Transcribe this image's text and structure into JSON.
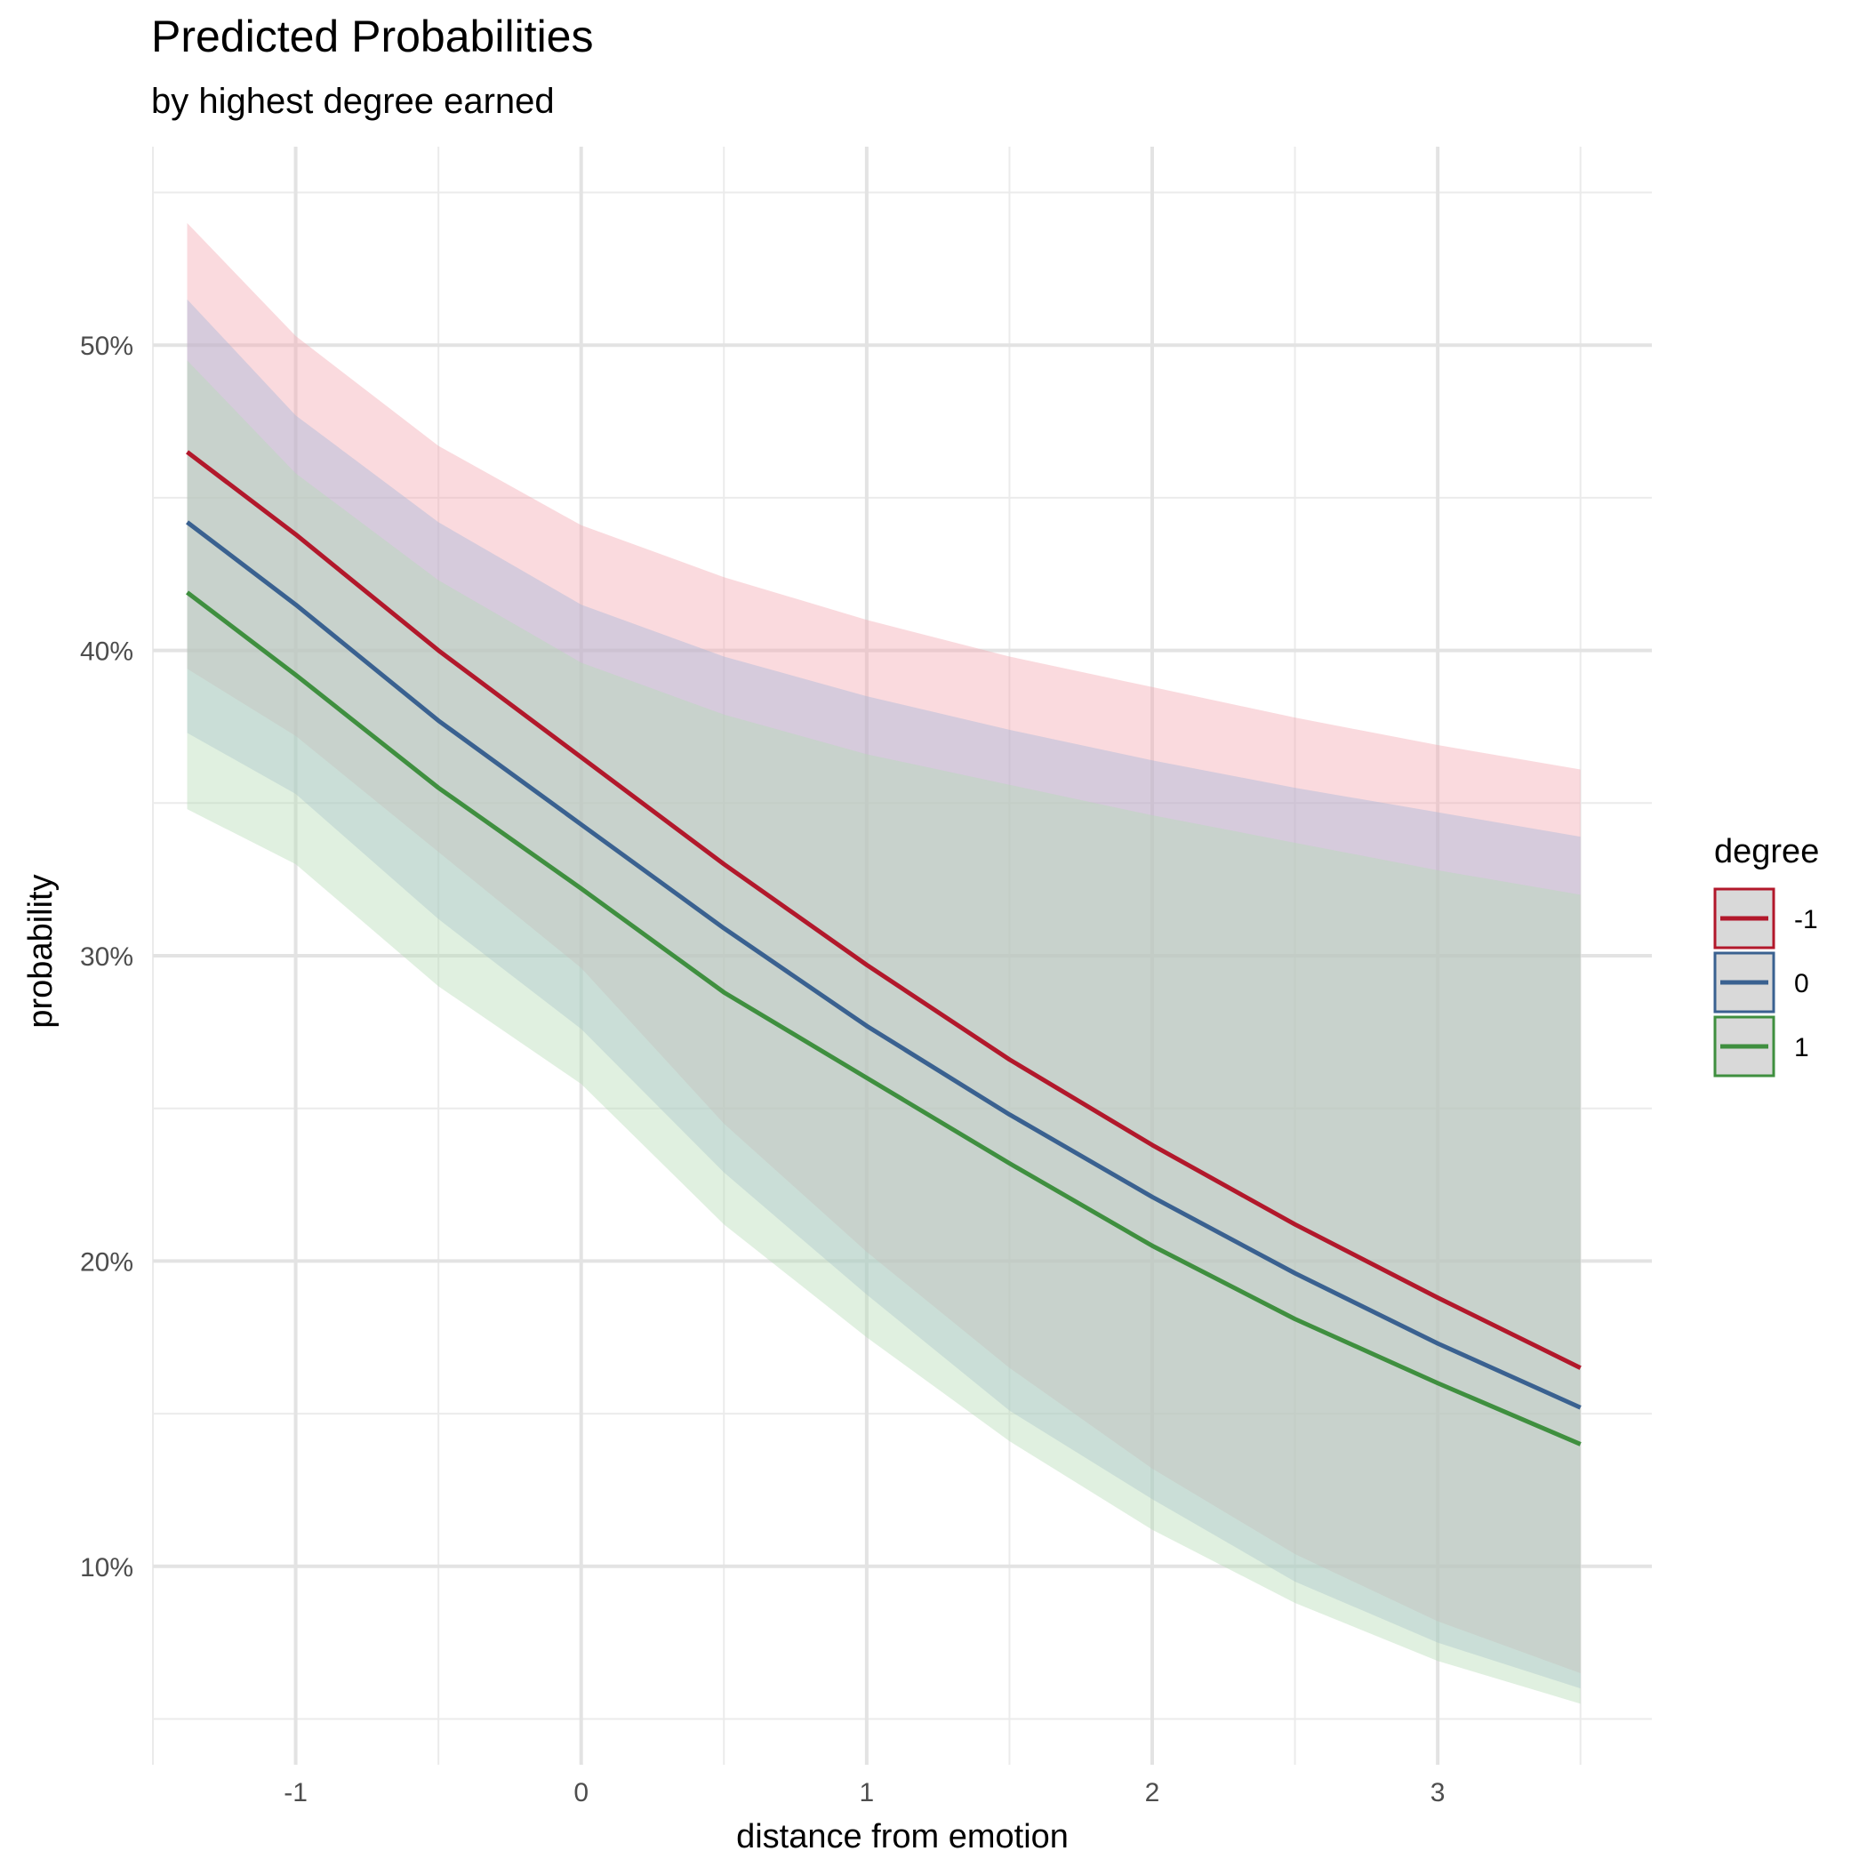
{
  "chart_data": {
    "type": "line",
    "title": "Predicted Probabilities",
    "subtitle": "by highest degree earned",
    "xlabel": "distance from emotion",
    "ylabel": "probability",
    "xlim": [
      -1.5,
      3.75
    ],
    "ylim": [
      0.035,
      0.565
    ],
    "x_ticks": [
      -1,
      0,
      1,
      2,
      3
    ],
    "x_tick_labels": [
      "-1",
      "0",
      "1",
      "2",
      "3"
    ],
    "y_ticks": [
      0.1,
      0.2,
      0.3,
      0.4,
      0.5
    ],
    "y_tick_labels": [
      "10%",
      "20%",
      "30%",
      "40%",
      "50%"
    ],
    "grid": true,
    "legend": {
      "title": "degree",
      "position": "right"
    },
    "x": [
      -1.38,
      -1.0,
      -0.5,
      0.0,
      0.5,
      1.0,
      1.5,
      2.0,
      2.5,
      3.0,
      3.5
    ],
    "series": [
      {
        "name": "-1",
        "color": "#b2182b",
        "fill": "#f4a6b0",
        "values": [
          0.465,
          0.438,
          0.4,
          0.365,
          0.33,
          0.297,
          0.266,
          0.238,
          0.212,
          0.188,
          0.165
        ],
        "upper": [
          0.54,
          0.503,
          0.467,
          0.441,
          0.424,
          0.41,
          0.398,
          0.388,
          0.378,
          0.369,
          0.361
        ],
        "lower": [
          0.394,
          0.372,
          0.334,
          0.296,
          0.245,
          0.203,
          0.165,
          0.132,
          0.104,
          0.082,
          0.065
        ]
      },
      {
        "name": "0",
        "color": "#3a6190",
        "fill": "#a4b8d8",
        "values": [
          0.442,
          0.415,
          0.377,
          0.343,
          0.309,
          0.277,
          0.248,
          0.221,
          0.196,
          0.173,
          0.152
        ],
        "upper": [
          0.515,
          0.477,
          0.442,
          0.415,
          0.398,
          0.385,
          0.374,
          0.364,
          0.355,
          0.347,
          0.339
        ],
        "lower": [
          0.373,
          0.353,
          0.312,
          0.276,
          0.229,
          0.189,
          0.151,
          0.122,
          0.095,
          0.075,
          0.06
        ]
      },
      {
        "name": "1",
        "color": "#3f8f3f",
        "fill": "#b6dcb6",
        "values": [
          0.419,
          0.392,
          0.355,
          0.322,
          0.288,
          0.26,
          0.232,
          0.205,
          0.181,
          0.16,
          0.14
        ],
        "upper": [
          0.495,
          0.458,
          0.423,
          0.396,
          0.379,
          0.366,
          0.356,
          0.346,
          0.337,
          0.328,
          0.32
        ],
        "lower": [
          0.348,
          0.33,
          0.29,
          0.258,
          0.212,
          0.175,
          0.141,
          0.112,
          0.088,
          0.069,
          0.055
        ]
      }
    ]
  }
}
